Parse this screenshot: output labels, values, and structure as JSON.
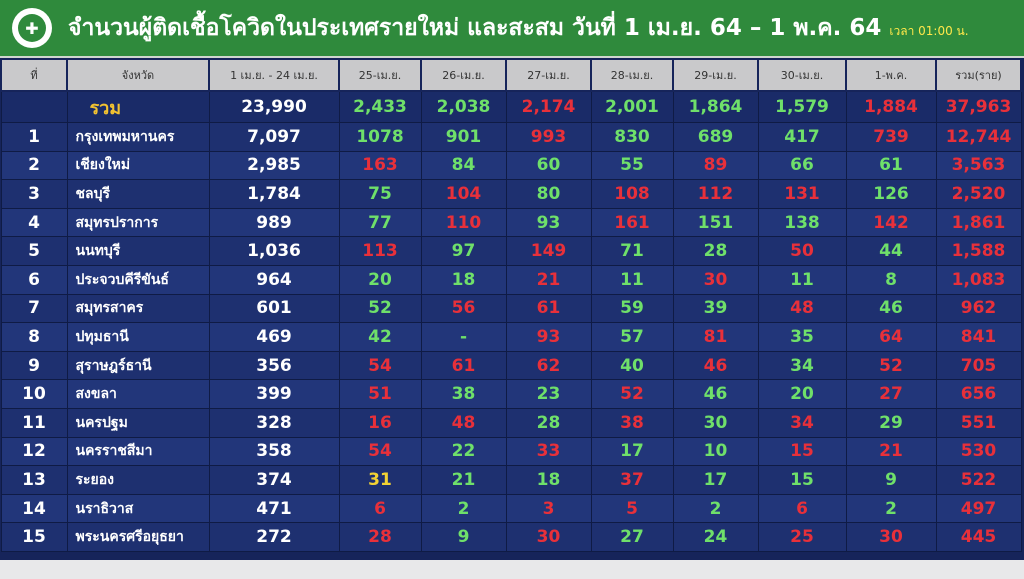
{
  "header": {
    "title": "จำนวนผู้ติดเชื้อโควิดในประเทศรายใหม่ และสะสม วันที่ 1 เม.ย. 64 – 1 พ.ค. 64",
    "time": "เวลา 01:00 น.",
    "logo_icon": "ministry-of-public-health-logo"
  },
  "colors": {
    "header_bg": "#2f8a3c",
    "table_bg": "#1c2e6e",
    "increase": "#e8303a",
    "decrease": "#6fe06a",
    "neutral": "#f2d234"
  },
  "columns": [
    "ที่",
    "จังหวัด",
    "1 เม.ย. - 24 เม.ย.",
    "25-เม.ย.",
    "26-เม.ย.",
    "27-เม.ย.",
    "28-เม.ย.",
    "29-เม.ย.",
    "30-เม.ย.",
    "1-พ.ค.",
    "รวม(ราย)"
  ],
  "total": {
    "label": "รวม",
    "base": "23,990",
    "cells": [
      [
        "2,433",
        "g"
      ],
      [
        "2,038",
        "g"
      ],
      [
        "2,174",
        "r"
      ],
      [
        "2,001",
        "g"
      ],
      [
        "1,864",
        "g"
      ],
      [
        "1,579",
        "g"
      ],
      [
        "1,884",
        "r"
      ],
      [
        "37,963",
        "r"
      ]
    ]
  },
  "rows": [
    {
      "no": "1",
      "province": "กรุงเทพมหานคร",
      "base": "7,097",
      "cells": [
        [
          "1078",
          "g"
        ],
        [
          "901",
          "g"
        ],
        [
          "993",
          "r"
        ],
        [
          "830",
          "g"
        ],
        [
          "689",
          "g"
        ],
        [
          "417",
          "g"
        ],
        [
          "739",
          "r"
        ],
        [
          "12,744",
          "r"
        ]
      ]
    },
    {
      "no": "2",
      "province": "เชียงใหม่",
      "base": "2,985",
      "cells": [
        [
          "163",
          "r"
        ],
        [
          "84",
          "g"
        ],
        [
          "60",
          "g"
        ],
        [
          "55",
          "g"
        ],
        [
          "89",
          "r"
        ],
        [
          "66",
          "g"
        ],
        [
          "61",
          "g"
        ],
        [
          "3,563",
          "r"
        ]
      ]
    },
    {
      "no": "3",
      "province": "ชลบุรี",
      "base": "1,784",
      "cells": [
        [
          "75",
          "g"
        ],
        [
          "104",
          "r"
        ],
        [
          "80",
          "g"
        ],
        [
          "108",
          "r"
        ],
        [
          "112",
          "r"
        ],
        [
          "131",
          "r"
        ],
        [
          "126",
          "g"
        ],
        [
          "2,520",
          "r"
        ]
      ]
    },
    {
      "no": "4",
      "province": "สมุทรปราการ",
      "base": "989",
      "cells": [
        [
          "77",
          "g"
        ],
        [
          "110",
          "r"
        ],
        [
          "93",
          "g"
        ],
        [
          "161",
          "r"
        ],
        [
          "151",
          "g"
        ],
        [
          "138",
          "g"
        ],
        [
          "142",
          "r"
        ],
        [
          "1,861",
          "r"
        ]
      ]
    },
    {
      "no": "5",
      "province": "นนทบุรี",
      "base": "1,036",
      "cells": [
        [
          "113",
          "r"
        ],
        [
          "97",
          "g"
        ],
        [
          "149",
          "r"
        ],
        [
          "71",
          "g"
        ],
        [
          "28",
          "g"
        ],
        [
          "50",
          "r"
        ],
        [
          "44",
          "g"
        ],
        [
          "1,588",
          "r"
        ]
      ]
    },
    {
      "no": "6",
      "province": "ประจวบคีรีขันธ์",
      "base": "964",
      "cells": [
        [
          "20",
          "g"
        ],
        [
          "18",
          "g"
        ],
        [
          "21",
          "r"
        ],
        [
          "11",
          "g"
        ],
        [
          "30",
          "r"
        ],
        [
          "11",
          "g"
        ],
        [
          "8",
          "g"
        ],
        [
          "1,083",
          "r"
        ]
      ]
    },
    {
      "no": "7",
      "province": "สมุทรสาคร",
      "base": "601",
      "cells": [
        [
          "52",
          "g"
        ],
        [
          "56",
          "r"
        ],
        [
          "61",
          "r"
        ],
        [
          "59",
          "g"
        ],
        [
          "39",
          "g"
        ],
        [
          "48",
          "r"
        ],
        [
          "46",
          "g"
        ],
        [
          "962",
          "r"
        ]
      ]
    },
    {
      "no": "8",
      "province": "ปทุมธานี",
      "base": "469",
      "cells": [
        [
          "42",
          "g"
        ],
        [
          "-",
          "g"
        ],
        [
          "93",
          "r"
        ],
        [
          "57",
          "g"
        ],
        [
          "81",
          "r"
        ],
        [
          "35",
          "g"
        ],
        [
          "64",
          "r"
        ],
        [
          "841",
          "r"
        ]
      ]
    },
    {
      "no": "9",
      "province": "สุราษฎร์ธานี",
      "base": "356",
      "cells": [
        [
          "54",
          "r"
        ],
        [
          "61",
          "r"
        ],
        [
          "62",
          "r"
        ],
        [
          "40",
          "g"
        ],
        [
          "46",
          "r"
        ],
        [
          "34",
          "g"
        ],
        [
          "52",
          "r"
        ],
        [
          "705",
          "r"
        ]
      ]
    },
    {
      "no": "10",
      "province": "สงขลา",
      "base": "399",
      "cells": [
        [
          "51",
          "r"
        ],
        [
          "38",
          "g"
        ],
        [
          "23",
          "g"
        ],
        [
          "52",
          "r"
        ],
        [
          "46",
          "g"
        ],
        [
          "20",
          "g"
        ],
        [
          "27",
          "r"
        ],
        [
          "656",
          "r"
        ]
      ]
    },
    {
      "no": "11",
      "province": "นครปฐม",
      "base": "328",
      "cells": [
        [
          "16",
          "r"
        ],
        [
          "48",
          "r"
        ],
        [
          "28",
          "g"
        ],
        [
          "38",
          "r"
        ],
        [
          "30",
          "g"
        ],
        [
          "34",
          "r"
        ],
        [
          "29",
          "g"
        ],
        [
          "551",
          "r"
        ]
      ]
    },
    {
      "no": "12",
      "province": "นครราชสีมา",
      "base": "358",
      "cells": [
        [
          "54",
          "r"
        ],
        [
          "22",
          "g"
        ],
        [
          "33",
          "r"
        ],
        [
          "17",
          "g"
        ],
        [
          "10",
          "g"
        ],
        [
          "15",
          "r"
        ],
        [
          "21",
          "r"
        ],
        [
          "530",
          "r"
        ]
      ]
    },
    {
      "no": "13",
      "province": "ระยอง",
      "base": "374",
      "cells": [
        [
          "31",
          "y"
        ],
        [
          "21",
          "g"
        ],
        [
          "18",
          "g"
        ],
        [
          "37",
          "r"
        ],
        [
          "17",
          "g"
        ],
        [
          "15",
          "g"
        ],
        [
          "9",
          "g"
        ],
        [
          "522",
          "r"
        ]
      ]
    },
    {
      "no": "14",
      "province": "นราธิวาส",
      "base": "471",
      "cells": [
        [
          "6",
          "r"
        ],
        [
          "2",
          "g"
        ],
        [
          "3",
          "r"
        ],
        [
          "5",
          "r"
        ],
        [
          "2",
          "g"
        ],
        [
          "6",
          "r"
        ],
        [
          "2",
          "g"
        ],
        [
          "497",
          "r"
        ]
      ]
    },
    {
      "no": "15",
      "province": "พระนครศรีอยุธยา",
      "base": "272",
      "cells": [
        [
          "28",
          "r"
        ],
        [
          "9",
          "g"
        ],
        [
          "30",
          "r"
        ],
        [
          "27",
          "g"
        ],
        [
          "24",
          "g"
        ],
        [
          "25",
          "r"
        ],
        [
          "30",
          "r"
        ],
        [
          "445",
          "r"
        ]
      ]
    }
  ]
}
